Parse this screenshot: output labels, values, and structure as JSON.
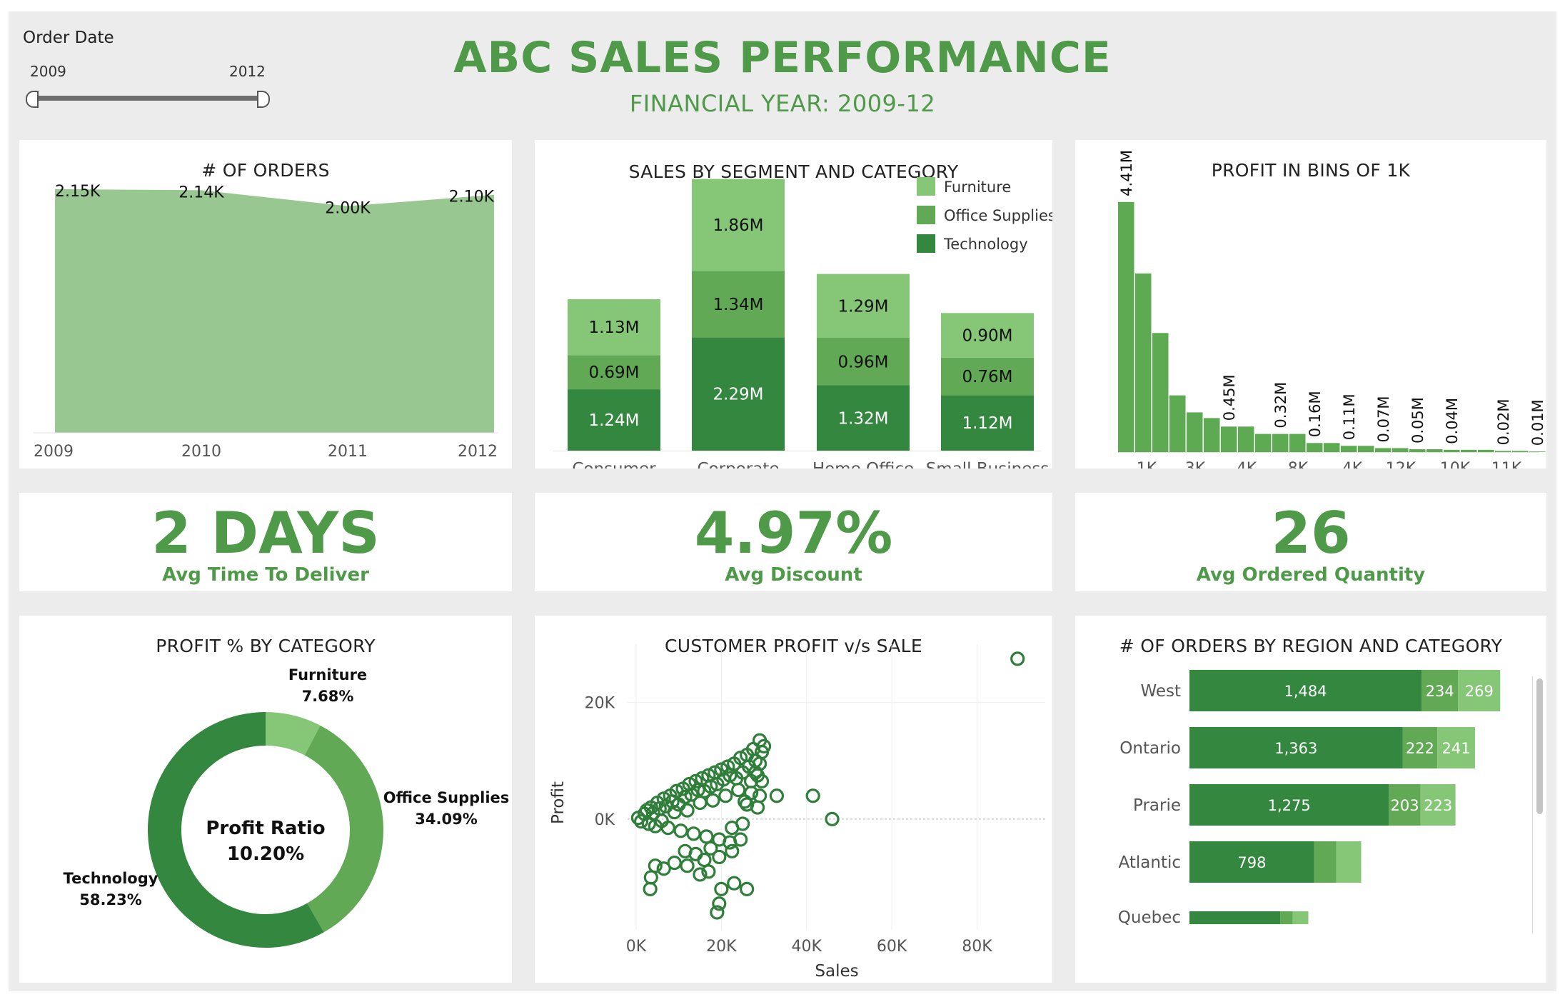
{
  "filter": {
    "label": "Order Date",
    "start": "2009",
    "end": "2012"
  },
  "header": {
    "title": "ABC SALES PERFORMANCE",
    "subtitle": "FINANCIAL YEAR: 2009-12"
  },
  "colors": {
    "accent": "#4f9a49",
    "light": "#86c777",
    "mid": "#62a955",
    "dark": "#33873f",
    "area": "#99c792"
  },
  "kpis": [
    {
      "value": "2 DAYS",
      "label": "Avg Time To Deliver"
    },
    {
      "value": "4.97%",
      "label": "Avg Discount"
    },
    {
      "value": "26",
      "label": "Avg Ordered Quantity"
    }
  ],
  "chart_data": [
    {
      "id": "orders",
      "type": "area",
      "title": "# OF ORDERS",
      "x": [
        "2009",
        "2010",
        "2011",
        "2012"
      ],
      "values": [
        2150,
        2140,
        2000,
        2100
      ],
      "labels": [
        "2.15K",
        "2.14K",
        "2.00K",
        "2.10K"
      ],
      "ylim": [
        0,
        2300
      ]
    },
    {
      "id": "segment",
      "type": "bar",
      "stacked": true,
      "title": "SALES BY SEGMENT AND CATEGORY",
      "categories": [
        "Consumer",
        "Corporate",
        "Home Office",
        "Small Business"
      ],
      "series": [
        {
          "name": "Technology",
          "values": [
            1.24,
            2.29,
            1.32,
            1.12
          ],
          "labels": [
            "1.24M",
            "2.29M",
            "1.32M",
            "1.12M"
          ],
          "color": "#33873f"
        },
        {
          "name": "Office Supplies",
          "values": [
            0.69,
            1.34,
            0.96,
            0.76
          ],
          "labels": [
            "0.69M",
            "1.34M",
            "0.96M",
            "0.76M"
          ],
          "color": "#62a955"
        },
        {
          "name": "Furniture",
          "values": [
            1.13,
            1.86,
            1.29,
            0.9
          ],
          "labels": [
            "1.13M",
            "1.86M",
            "1.29M",
            "0.90M"
          ],
          "color": "#86c777"
        }
      ],
      "legend_order": [
        "Furniture",
        "Office Supplies",
        "Technology"
      ],
      "legend": "top-right",
      "ylim": [
        0,
        5.7
      ]
    },
    {
      "id": "bins",
      "type": "bar",
      "title": "PROFIT IN BINS OF 1K",
      "values": [
        4.41,
        3.15,
        2.1,
        1.0,
        0.7,
        0.6,
        0.45,
        0.45,
        0.32,
        0.32,
        0.32,
        0.16,
        0.16,
        0.11,
        0.11,
        0.07,
        0.07,
        0.05,
        0.05,
        0.04,
        0.04,
        0.04,
        0.02,
        0.02,
        0.01,
        0.01
      ],
      "bar_labels": {
        "0": "4.41M",
        "6": "0.45M",
        "9": "0.32M",
        "11": "0.16M",
        "13": "0.11M",
        "15": "0.07M",
        "17": "0.05M",
        "19": "0.04M",
        "22": "0.02M",
        "24": "0.01M"
      },
      "tick_labels": {
        "1": "-1K",
        "4": "3K",
        "7": "4K",
        "10": "8K",
        "13": "-4K",
        "16": "12K",
        "19": "-10K",
        "22": "-11K"
      },
      "ylim": [
        0,
        5.0
      ]
    },
    {
      "id": "donut",
      "type": "pie",
      "title": "PROFIT % BY CATEGORY",
      "center_label": "Profit Ratio",
      "center_value": "10.20%",
      "slices": [
        {
          "name": "Furniture",
          "value": 7.68,
          "label": "7.68%",
          "color": "#86c777"
        },
        {
          "name": "Office Supplies",
          "value": 34.09,
          "label": "34.09%",
          "color": "#62a955"
        },
        {
          "name": "Technology",
          "value": 58.23,
          "label": "58.23%",
          "color": "#33873f"
        }
      ]
    },
    {
      "id": "scatter",
      "type": "scatter",
      "title": "CUSTOMER PROFIT v/s SALE",
      "xlabel": "Sales",
      "ylabel": "Profit",
      "xlim": [
        -2000,
        96000
      ],
      "ylim": [
        -19000,
        30000
      ],
      "xticks": [
        0,
        20000,
        40000,
        60000,
        80000
      ],
      "xtick_labels": [
        "0K",
        "20K",
        "40K",
        "60K",
        "80K"
      ],
      "yticks": [
        0,
        20000
      ],
      "ytick_labels": [
        "0K",
        "20K"
      ],
      "points": [
        [
          500,
          200
        ],
        [
          1200,
          -400
        ],
        [
          2000,
          900
        ],
        [
          2500,
          1500
        ],
        [
          3000,
          -800
        ],
        [
          3500,
          2000
        ],
        [
          4000,
          1000
        ],
        [
          4500,
          -1200
        ],
        [
          5000,
          2800
        ],
        [
          5500,
          1800
        ],
        [
          6000,
          -300
        ],
        [
          6500,
          3500
        ],
        [
          7000,
          2200
        ],
        [
          7500,
          -1500
        ],
        [
          8000,
          4000
        ],
        [
          8500,
          3000
        ],
        [
          9000,
          1200
        ],
        [
          9500,
          4800
        ],
        [
          10000,
          2500
        ],
        [
          10500,
          -2000
        ],
        [
          11000,
          5200
        ],
        [
          11500,
          3800
        ],
        [
          12000,
          1500
        ],
        [
          12500,
          6000
        ],
        [
          13000,
          4200
        ],
        [
          13500,
          -2500
        ],
        [
          14000,
          6500
        ],
        [
          14500,
          5000
        ],
        [
          15000,
          2800
        ],
        [
          15500,
          7000
        ],
        [
          16000,
          4800
        ],
        [
          16500,
          -3000
        ],
        [
          17000,
          7500
        ],
        [
          17500,
          5600
        ],
        [
          18000,
          3200
        ],
        [
          18500,
          8000
        ],
        [
          19000,
          6000
        ],
        [
          19500,
          -3500
        ],
        [
          20000,
          8500
        ],
        [
          20500,
          6800
        ],
        [
          21000,
          4000
        ],
        [
          21500,
          9000
        ],
        [
          22000,
          7500
        ],
        [
          22500,
          -1500
        ],
        [
          23000,
          9500
        ],
        [
          23500,
          7000
        ],
        [
          24000,
          5000
        ],
        [
          24500,
          10500
        ],
        [
          25000,
          8000
        ],
        [
          25500,
          3000
        ],
        [
          26000,
          11000
        ],
        [
          26500,
          9000
        ],
        [
          27000,
          6500
        ],
        [
          27500,
          12000
        ],
        [
          28000,
          10000
        ],
        [
          28500,
          7500
        ],
        [
          29000,
          13500
        ],
        [
          29500,
          11500
        ],
        [
          29000,
          9500
        ],
        [
          30000,
          12500
        ],
        [
          27000,
          4500
        ],
        [
          28500,
          2000
        ],
        [
          26000,
          2500
        ],
        [
          25000,
          -800
        ],
        [
          4500,
          -8000
        ],
        [
          3500,
          -10000
        ],
        [
          6500,
          -8500
        ],
        [
          9000,
          -7500
        ],
        [
          12000,
          -8000
        ],
        [
          11500,
          -5500
        ],
        [
          14000,
          -6000
        ],
        [
          16000,
          -7000
        ],
        [
          17500,
          -5000
        ],
        [
          19500,
          -6500
        ],
        [
          22000,
          -4000
        ],
        [
          24500,
          -3500
        ],
        [
          17000,
          -9000
        ],
        [
          20000,
          -12000
        ],
        [
          23000,
          -11000
        ],
        [
          26000,
          -12000
        ],
        [
          19500,
          -14500
        ],
        [
          19000,
          -16000
        ],
        [
          3300,
          -12000
        ],
        [
          15000,
          -9500
        ],
        [
          22500,
          -5500
        ],
        [
          29000,
          4000
        ],
        [
          28000,
          8000
        ],
        [
          29500,
          6500
        ],
        [
          33000,
          4000
        ],
        [
          41500,
          4000
        ],
        [
          46000,
          0
        ],
        [
          89500,
          27500
        ]
      ]
    },
    {
      "id": "region",
      "type": "bar",
      "orientation": "horizontal",
      "stacked": true,
      "title": "# OF ORDERS BY REGION AND CATEGORY",
      "categories": [
        "West",
        "Ontario",
        "Prarie",
        "Atlantic",
        "Quebec"
      ],
      "series": [
        {
          "name": "Technology",
          "values": [
            1484,
            1363,
            1275,
            798,
            580
          ],
          "labels": [
            "1,484",
            "1,363",
            "1,275",
            "798",
            ""
          ],
          "color": "#33873f"
        },
        {
          "name": "Office Supplies",
          "values": [
            234,
            222,
            203,
            140,
            80
          ],
          "labels": [
            "234",
            "222",
            "203",
            "",
            ""
          ],
          "color": "#62a955"
        },
        {
          "name": "Furniture",
          "values": [
            269,
            241,
            223,
            160,
            100
          ],
          "labels": [
            "269",
            "241",
            "223",
            "",
            ""
          ],
          "color": "#86c777"
        }
      ],
      "xlim": [
        0,
        2100
      ]
    }
  ]
}
